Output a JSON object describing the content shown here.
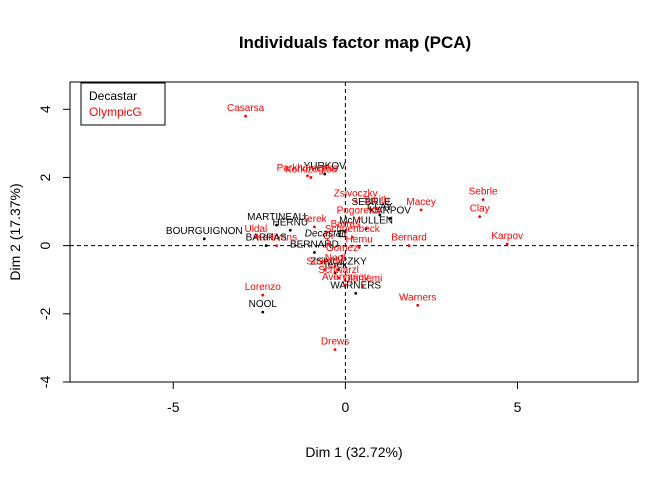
{
  "chart_data": {
    "type": "scatter",
    "title": "Individuals factor map (PCA)",
    "xlabel": "Dim 1 (32.72%)",
    "ylabel": "Dim 2 (17.37%)",
    "xlim": [
      -8,
      8.5
    ],
    "ylim": [
      -4,
      4.8
    ],
    "xticks": [
      -5,
      0,
      5
    ],
    "yticks": [
      -4,
      -2,
      0,
      2,
      4
    ],
    "xtick_labels": [
      "-5",
      "0",
      "5"
    ],
    "ytick_labels": [
      "-4",
      "-2",
      "0",
      "2",
      "4"
    ],
    "legend_position": "top-left",
    "reference_lines": {
      "x": 0,
      "y": 0
    },
    "centroid_label": "Decastar",
    "series": [
      {
        "name": "Decastar",
        "color": "#000000",
        "points": [
          {
            "label": "BOURGUIGNON",
            "x": -4.1,
            "y": 0.2
          },
          {
            "label": "MARTINEAU",
            "x": -2.0,
            "y": 0.6
          },
          {
            "label": "HERNU",
            "x": -1.6,
            "y": 0.45
          },
          {
            "label": "YURKOV",
            "x": -0.6,
            "y": 2.1
          },
          {
            "label": "SEBRLE",
            "x": 0.75,
            "y": 1.05
          },
          {
            "label": "KARPOV",
            "x": 1.3,
            "y": 0.8
          },
          {
            "label": "CLAY",
            "x": 1.0,
            "y": 0.9
          },
          {
            "label": "McMULLEN",
            "x": 0.6,
            "y": 0.5
          },
          {
            "label": "BARRAS",
            "x": -2.3,
            "y": 0.0
          },
          {
            "label": "BERNARD",
            "x": -0.9,
            "y": -0.2
          },
          {
            "label": "ZSIVOCZKY",
            "x": -0.2,
            "y": -0.7
          },
          {
            "label": "Terek",
            "x": -0.3,
            "y": -0.8
          },
          {
            "label": "WARNERS",
            "x": 0.3,
            "y": -1.4
          },
          {
            "label": "NOOL",
            "x": -2.4,
            "y": -1.95
          }
        ]
      },
      {
        "name": "OlympicG",
        "color": "#ff0000",
        "points": [
          {
            "label": "Casarsa",
            "x": -2.9,
            "y": 3.8
          },
          {
            "label": "Parkhomenko",
            "x": -1.1,
            "y": 2.05
          },
          {
            "label": "Korkizoglou",
            "x": -1.0,
            "y": 2.0
          },
          {
            "label": "Zsivoczky",
            "x": 0.3,
            "y": 1.3
          },
          {
            "label": "Smith",
            "x": 0.9,
            "y": 1.1
          },
          {
            "label": "Macey",
            "x": 2.2,
            "y": 1.05
          },
          {
            "label": "Sebrle",
            "x": 4.0,
            "y": 1.35
          },
          {
            "label": "Clay",
            "x": 3.9,
            "y": 0.85
          },
          {
            "label": "Karpov",
            "x": 4.7,
            "y": 0.05
          },
          {
            "label": "Pogorelov",
            "x": 0.4,
            "y": 0.8
          },
          {
            "label": "Terek",
            "x": -0.9,
            "y": 0.55
          },
          {
            "label": "Barras",
            "x": 0.0,
            "y": 0.4
          },
          {
            "label": "Schoenbeck",
            "x": 0.2,
            "y": 0.25
          },
          {
            "label": "Bernard",
            "x": 1.85,
            "y": 0.0
          },
          {
            "label": "Uldal",
            "x": -2.6,
            "y": 0.25
          },
          {
            "label": "Karlivans",
            "x": -2.0,
            "y": 0.0
          },
          {
            "label": "Qi",
            "x": -0.5,
            "y": 0.05
          },
          {
            "label": "Hernu",
            "x": 0.4,
            "y": -0.05
          },
          {
            "label": "Gomez",
            "x": -0.1,
            "y": -0.3
          },
          {
            "label": "Nool",
            "x": -0.3,
            "y": -0.6
          },
          {
            "label": "Smirnov",
            "x": -0.6,
            "y": -0.7
          },
          {
            "label": "Schwarzl",
            "x": -0.2,
            "y": -0.95
          },
          {
            "label": "Averyanov",
            "x": 0.0,
            "y": -1.15
          },
          {
            "label": "Ojaniemi",
            "x": 0.5,
            "y": -1.2
          },
          {
            "label": "Warners",
            "x": 2.1,
            "y": -1.75
          },
          {
            "label": "Lorenzo",
            "x": -2.4,
            "y": -1.45
          },
          {
            "label": "Drews",
            "x": -0.3,
            "y": -3.05
          }
        ]
      }
    ]
  }
}
